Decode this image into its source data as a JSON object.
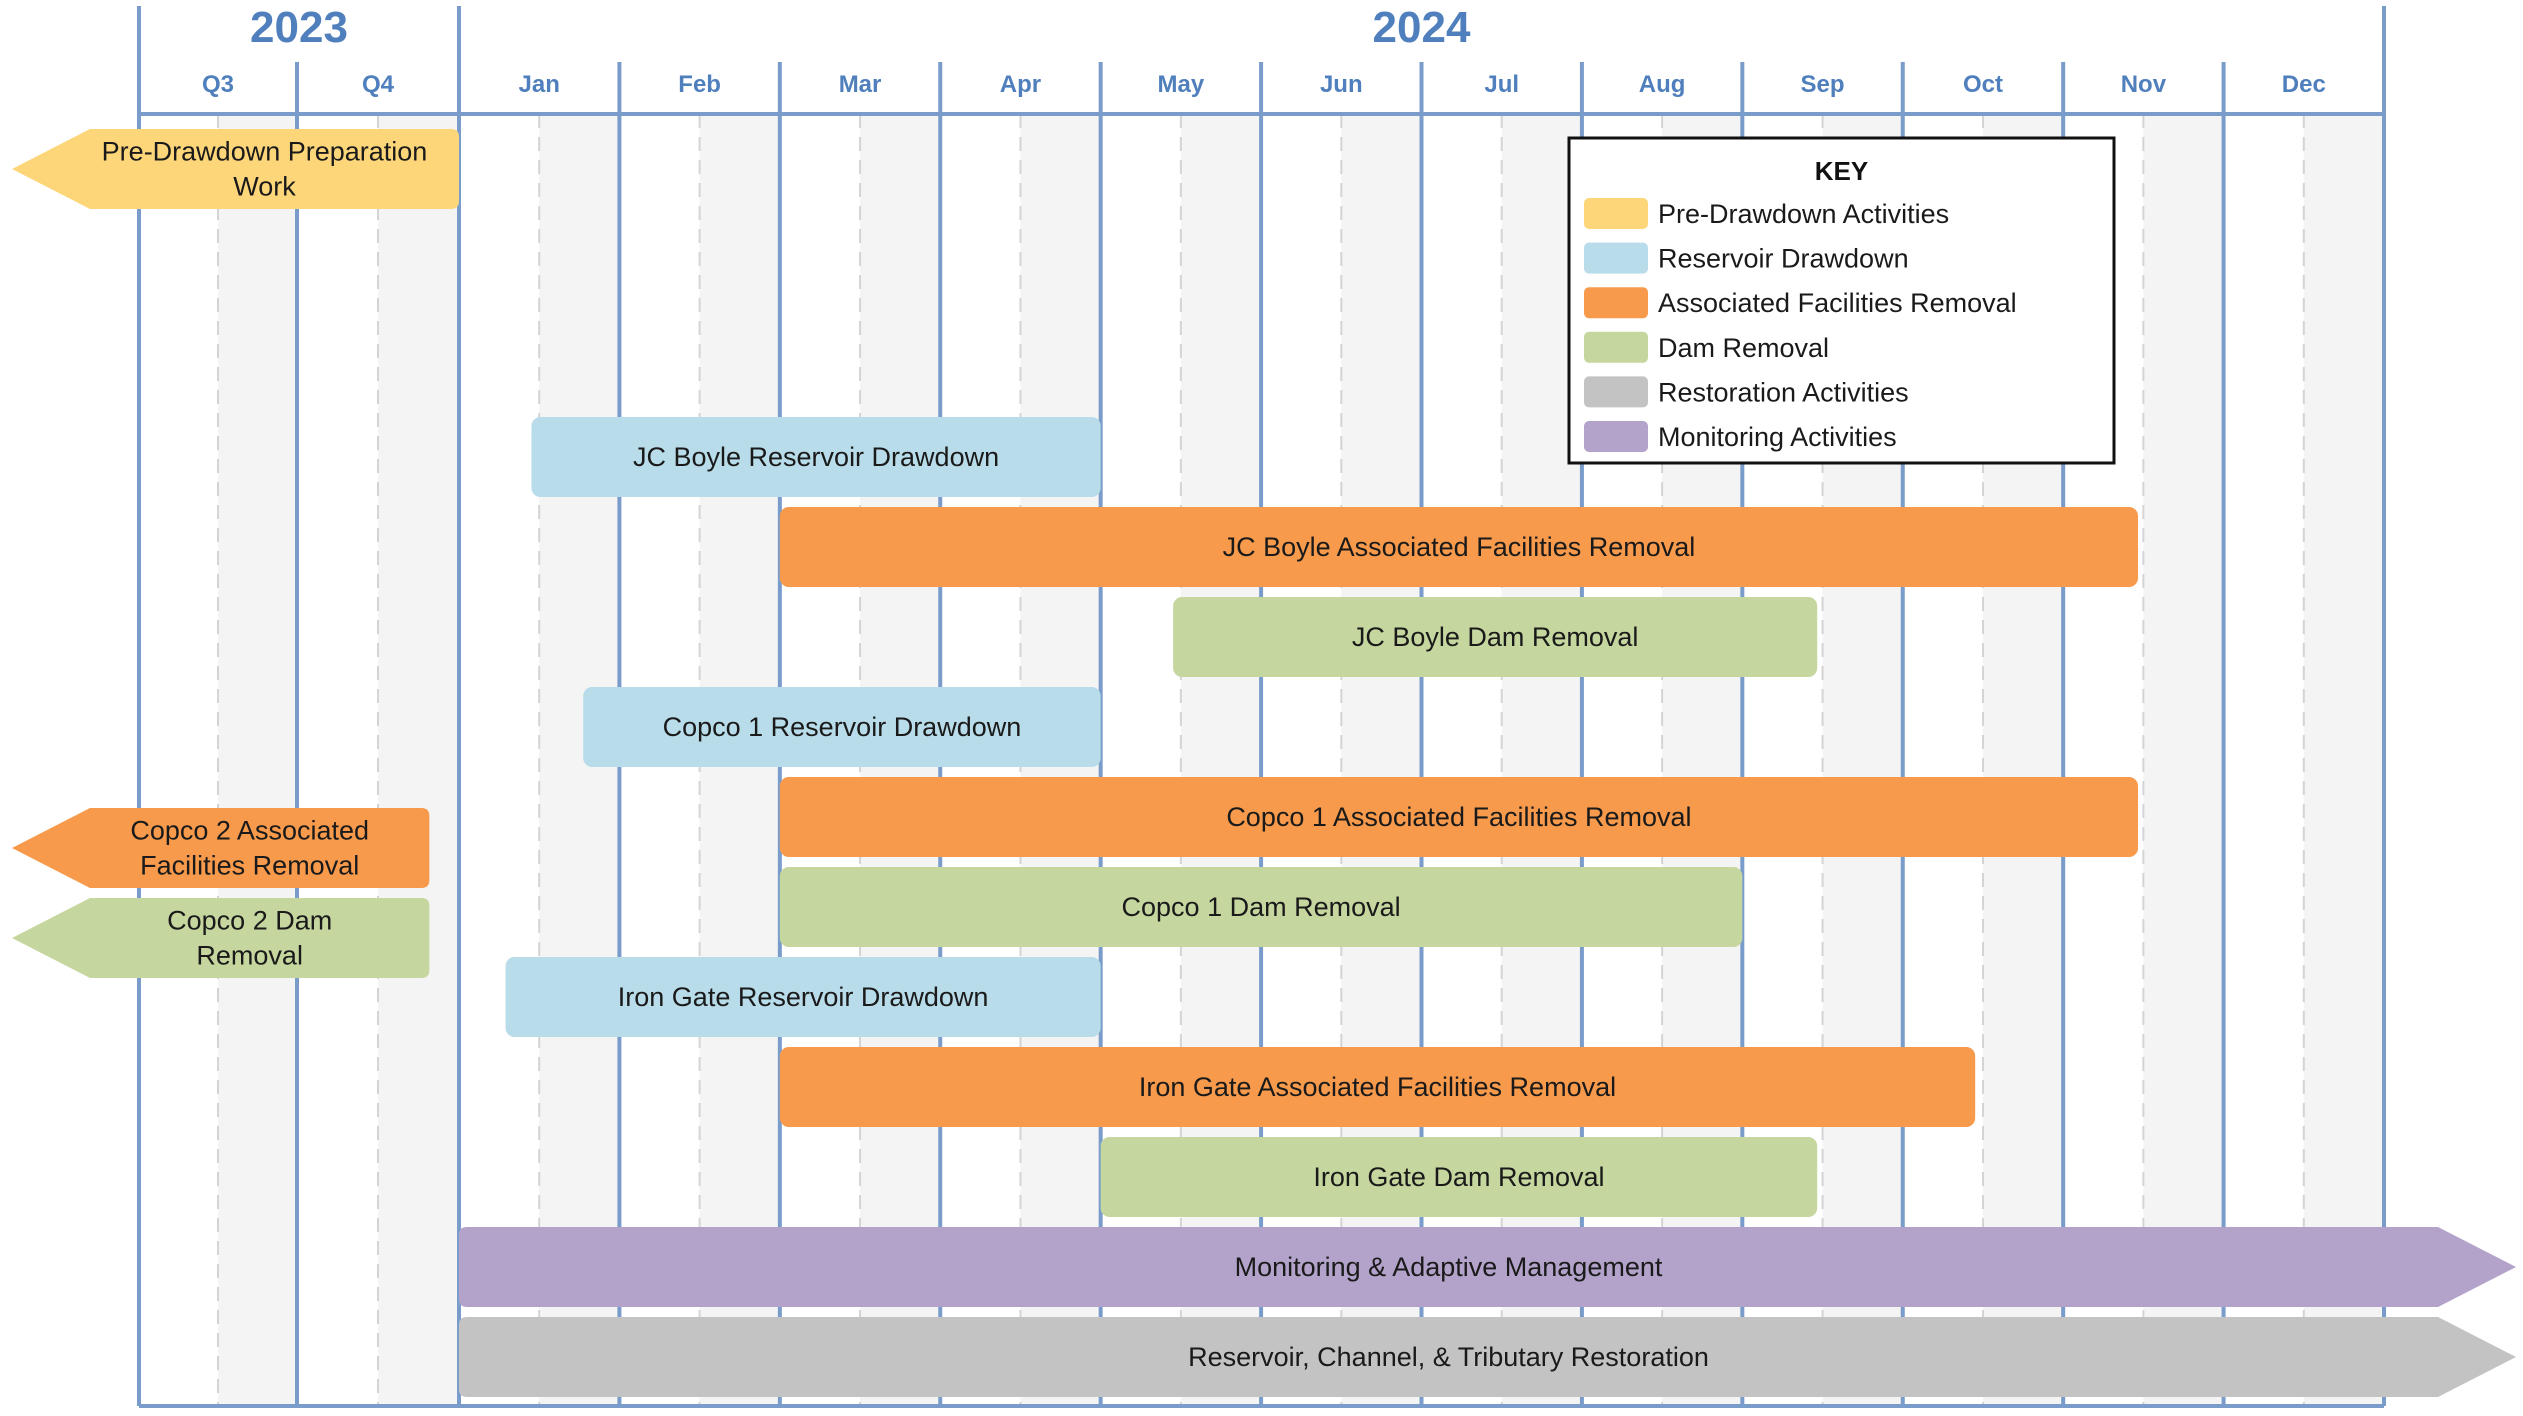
{
  "chart_data": {
    "type": "gantt",
    "years": [
      {
        "label": "2023",
        "periods": [
          "Q3",
          "Q4"
        ]
      },
      {
        "label": "2024",
        "periods": [
          "Jan",
          "Feb",
          "Mar",
          "Apr",
          "May",
          "Jun",
          "Jul",
          "Aug",
          "Sep",
          "Oct",
          "Nov",
          "Dec"
        ]
      }
    ],
    "key": {
      "title": "KEY",
      "items": [
        {
          "id": "pre",
          "label": "Pre-Drawdown Activities",
          "color": "#FDD67A"
        },
        {
          "id": "drawdown",
          "label": "Reservoir Drawdown",
          "color": "#B8DCE9"
        },
        {
          "id": "facilities",
          "label": "Associated Facilities Removal",
          "color": "#F79A4C"
        },
        {
          "id": "dam",
          "label": "Dam Removal",
          "color": "#C5D79F"
        },
        {
          "id": "restoration",
          "label": "Restoration Activities",
          "color": "#C3C3C3"
        },
        {
          "id": "monitoring",
          "label": "Monitoring Activities",
          "color": "#B3A3CA"
        }
      ]
    },
    "tasks": [
      {
        "label_lines": [
          "Pre-Drawdown Preparation",
          "Work"
        ],
        "category": "pre",
        "start": "before 2023-07",
        "end": "2023-12-31",
        "arrow": "left"
      },
      {
        "label_lines": [
          "JC Boyle Reservoir Drawdown"
        ],
        "category": "drawdown",
        "start": "2024-01-15",
        "end": "2024-04-30"
      },
      {
        "label_lines": [
          "JC Boyle Associated Facilities Removal"
        ],
        "category": "facilities",
        "start": "2024-03-01",
        "end": "2024-11-15"
      },
      {
        "label_lines": [
          "JC Boyle Dam Removal"
        ],
        "category": "dam",
        "start": "2024-05-15",
        "end": "2024-09-15"
      },
      {
        "label_lines": [
          "Copco 1 Reservoir Drawdown"
        ],
        "category": "drawdown",
        "start": "2024-01-25",
        "end": "2024-04-30"
      },
      {
        "label_lines": [
          "Copco 2 Associated",
          "Facilities Removal"
        ],
        "category": "facilities",
        "start": "before 2023-07",
        "end": "2023-12-15",
        "arrow": "left"
      },
      {
        "label_lines": [
          "Copco 1 Associated Facilities Removal"
        ],
        "category": "facilities",
        "start": "2024-03-01",
        "end": "2024-11-15"
      },
      {
        "label_lines": [
          "Copco 2 Dam",
          "Removal"
        ],
        "category": "dam",
        "start": "before 2023-07",
        "end": "2023-12-15",
        "arrow": "left"
      },
      {
        "label_lines": [
          "Copco 1 Dam Removal"
        ],
        "category": "dam",
        "start": "2024-03-01",
        "end": "2024-08-31"
      },
      {
        "label_lines": [
          "Iron Gate Reservoir Drawdown"
        ],
        "category": "drawdown",
        "start": "2024-01-10",
        "end": "2024-04-30"
      },
      {
        "label_lines": [
          "Iron Gate Associated Facilities Removal"
        ],
        "category": "facilities",
        "start": "2024-03-01",
        "end": "2024-10-15"
      },
      {
        "label_lines": [
          "Iron Gate Dam Removal"
        ],
        "category": "dam",
        "start": "2024-05-01",
        "end": "2024-09-15"
      },
      {
        "label_lines": [
          "Monitoring & Adaptive Management"
        ],
        "category": "monitoring",
        "start": "2024-01-01",
        "end": "after 2024-12",
        "arrow": "right"
      },
      {
        "label_lines": [
          "Reservoir, Channel, & Tributary Restoration"
        ],
        "category": "restoration",
        "start": "2024-01-01",
        "end": "after 2024-12",
        "arrow": "right"
      }
    ],
    "grid": true
  },
  "style": {
    "axis_color": "#7A9CCB",
    "header_text_color": "#4F7FBC",
    "shade_color": "#F4F4F4",
    "dash_color": "#D4D4D4",
    "label_color": "#1A1A1A"
  }
}
